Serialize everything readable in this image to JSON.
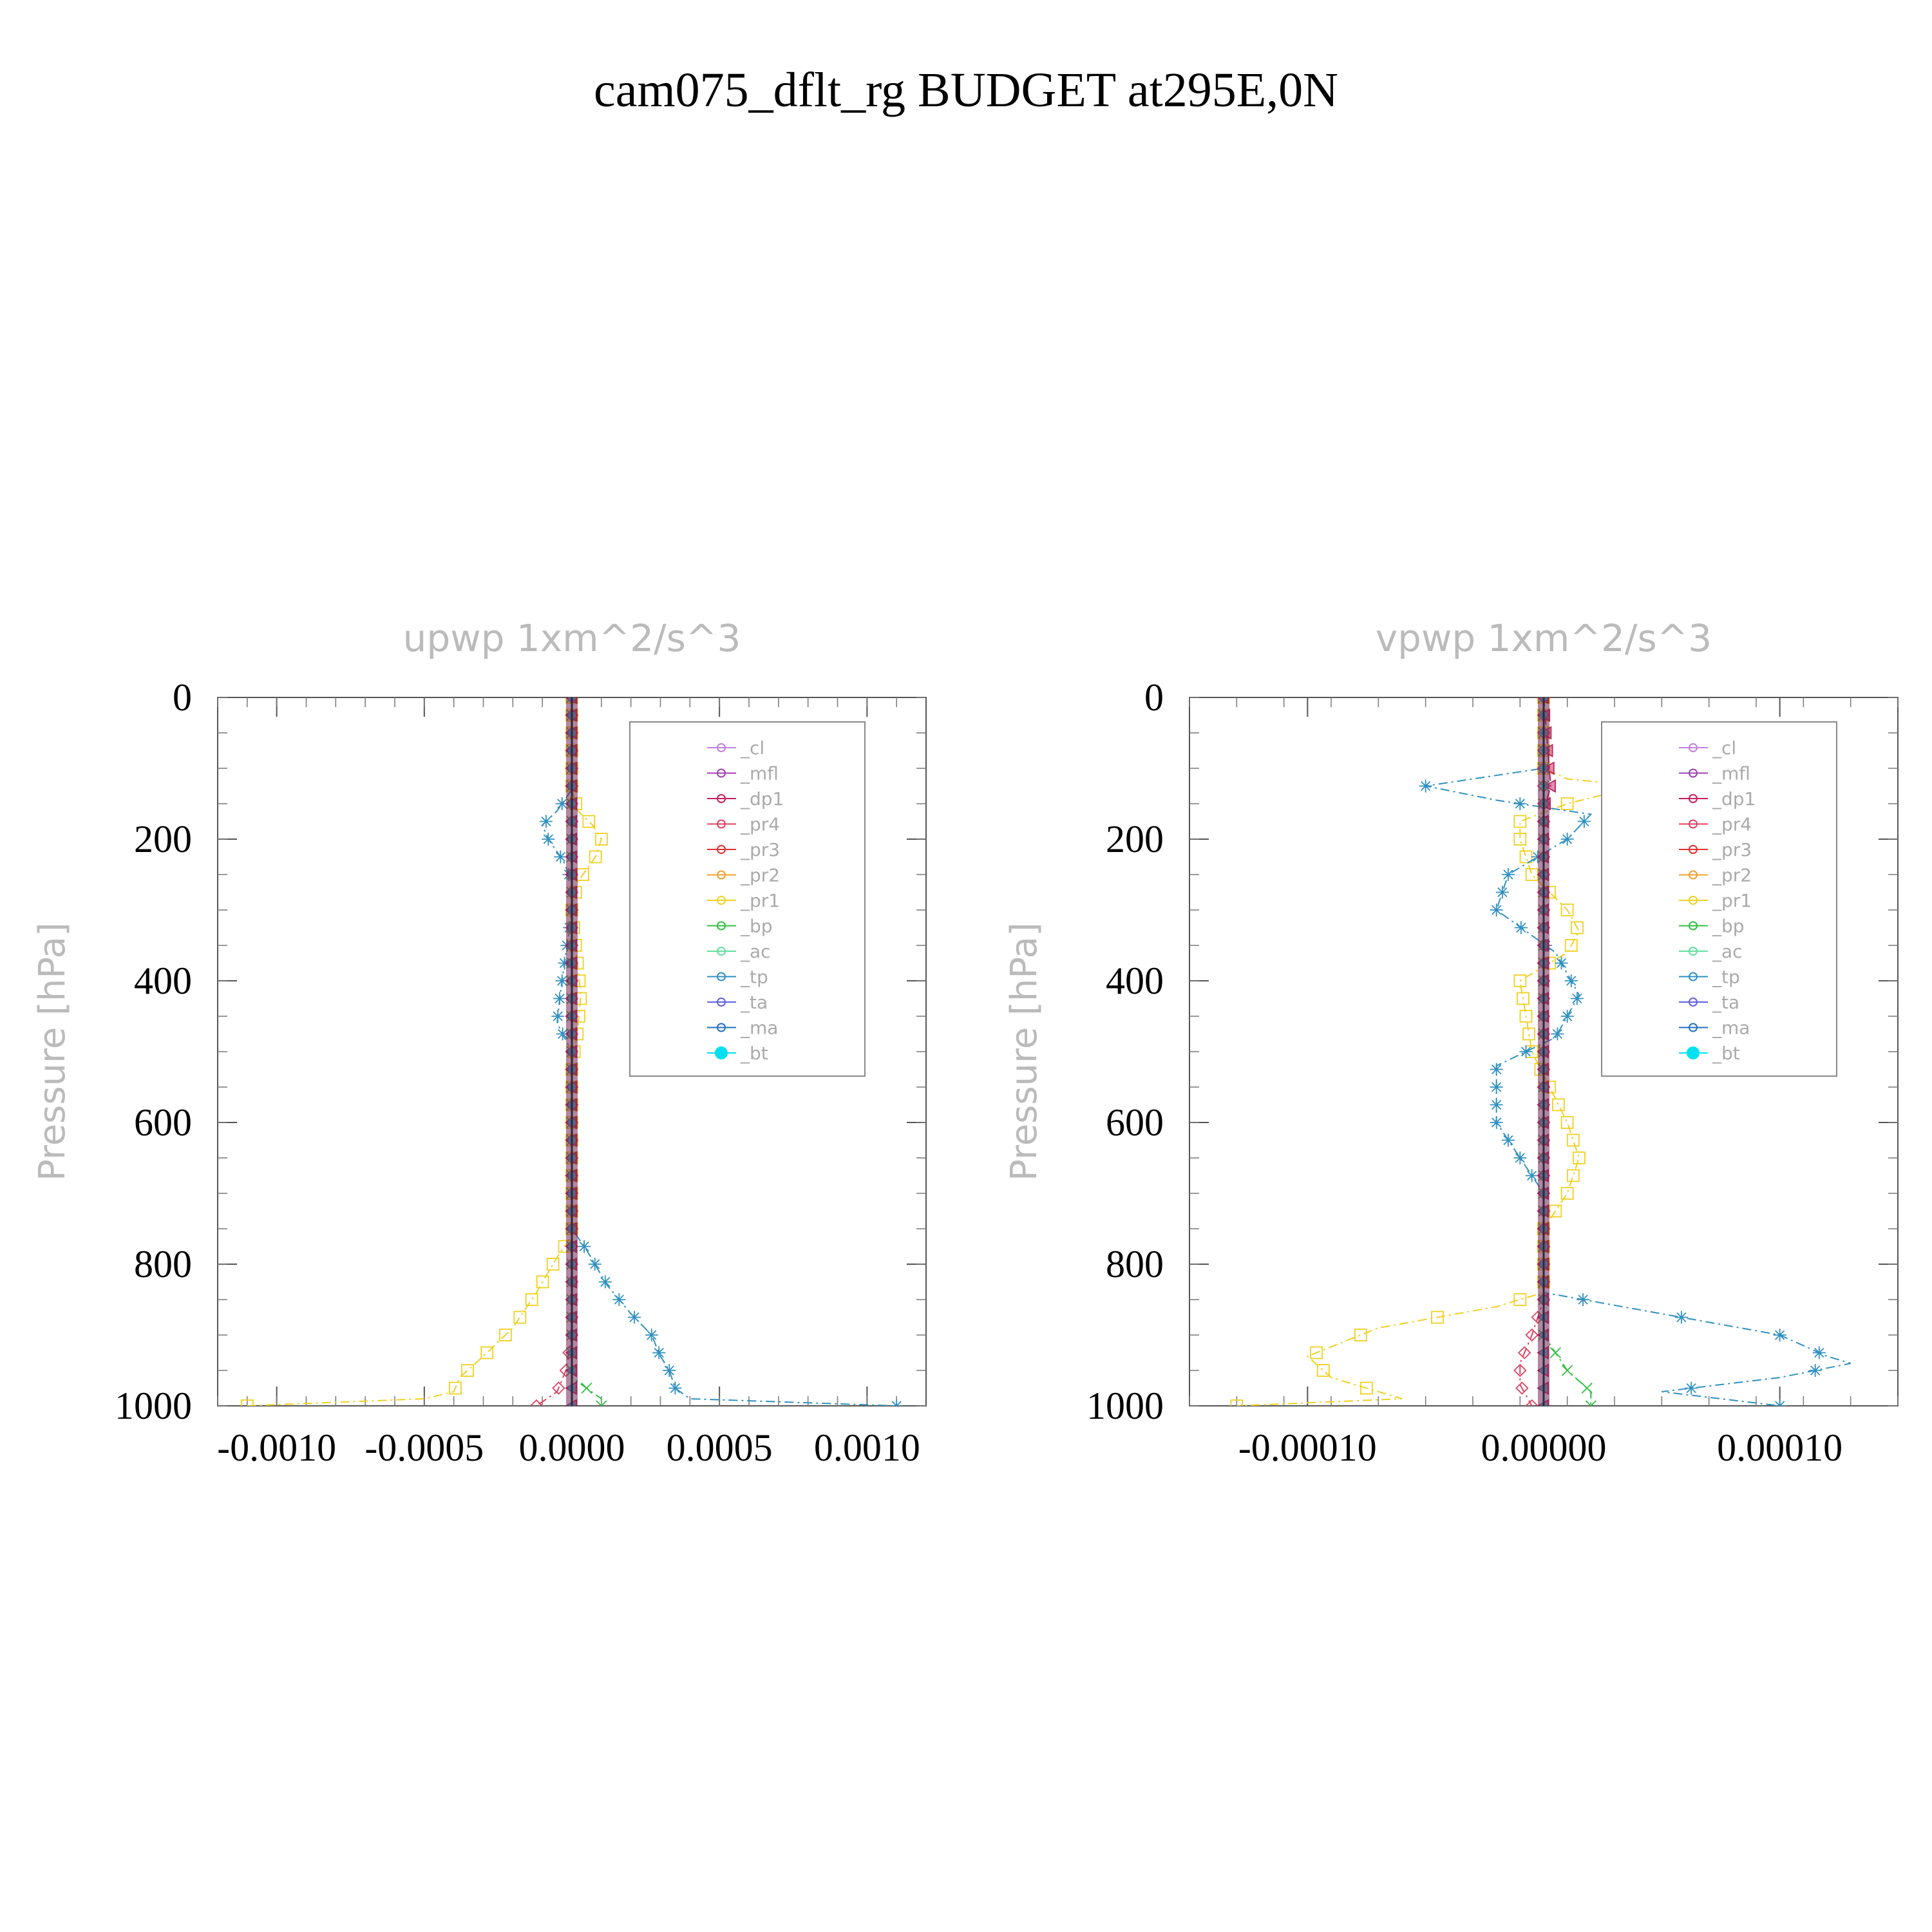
{
  "title": "cam075_dflt_rg  BUDGET at295E,0N",
  "legend_entries": [
    "_cl",
    "_mfl",
    "_dp1",
    "_pr4",
    "_pr3",
    "_pr2",
    "_pr1",
    "_bp",
    "_ac",
    "_tp",
    "_ta",
    "_ma",
    "_bt"
  ],
  "legend_colors": {
    "_cl": "#c080e0",
    "_mfl": "#a040b0",
    "_dp1": "#c02060",
    "_pr4": "#e04060",
    "_pr3": "#e03030",
    "_pr2": "#f0a030",
    "_pr1": "#f0d020",
    "_bp": "#30c040",
    "_ac": "#60e0a0",
    "_tp": "#3090c0",
    "_ta": "#6060e0",
    "_ma": "#2070c0",
    "_bt": "#00e0f0"
  },
  "chart_data": [
    {
      "type": "line",
      "title": "upwp    1xm^2/s^3",
      "ylabel": "Pressure  [hPa]",
      "xlim": [
        -0.0012,
        0.0012
      ],
      "ylim": [
        1000,
        0
      ],
      "x_ticks": [
        -0.001,
        -0.0005,
        0,
        0.0005,
        0.001
      ],
      "x_tick_labels": [
        "-0.0010",
        "-0.0005",
        "0.0000",
        "0.0005",
        "0.0010"
      ],
      "y_ticks": [
        0,
        200,
        400,
        600,
        800,
        1000
      ],
      "y_tick_labels": [
        "0",
        "200",
        "400",
        "600",
        "800",
        "1000"
      ],
      "legend_position": "top-right",
      "series": [
        {
          "name": "_pr1",
          "x": [
            0,
            0,
            2e-05,
            7e-05,
            0.0001,
            8e-05,
            2e-05,
            0,
            3e-05,
            2e-05,
            0,
            0,
            0,
            -5e-05,
            -0.00012,
            -0.0002,
            -0.0003,
            -0.00038,
            -0.0004,
            -0.0005,
            -0.0011
          ],
          "y": [
            0,
            130,
            160,
            180,
            200,
            225,
            260,
            300,
            420,
            470,
            520,
            650,
            760,
            790,
            840,
            890,
            930,
            960,
            980,
            990,
            1000
          ]
        },
        {
          "name": "_tp",
          "x": [
            0,
            0,
            -5e-05,
            -0.0001,
            -8e-05,
            -3e-05,
            0,
            0,
            -4e-05,
            -5e-05,
            0,
            0,
            0,
            5e-05,
            0.00012,
            0.0002,
            0.00027,
            0.0003,
            0.00033,
            0.00035,
            0.0004,
            0.0011
          ],
          "y": [
            0,
            130,
            160,
            180,
            200,
            230,
            260,
            300,
            420,
            460,
            500,
            650,
            750,
            780,
            830,
            870,
            900,
            930,
            950,
            975,
            990,
            1000
          ]
        },
        {
          "name": "_pr4",
          "x": [
            0,
            0,
            0,
            -2e-05,
            -5e-05,
            -0.00012
          ],
          "y": [
            0,
            800,
            900,
            950,
            980,
            1000
          ]
        },
        {
          "name": "_bp",
          "x": [
            0,
            0,
            5e-05,
            0.0001,
            0.0001
          ],
          "y": [
            0,
            960,
            975,
            990,
            1000
          ]
        },
        {
          "name": "_dp1",
          "x": [
            0,
            0
          ],
          "y": [
            0,
            1000
          ]
        },
        {
          "name": "_cl",
          "x": [
            0,
            0
          ],
          "y": [
            0,
            1000
          ]
        },
        {
          "name": "_ta",
          "x": [
            0,
            0
          ],
          "y": [
            0,
            1000
          ]
        },
        {
          "name": "_bt",
          "x": [
            0,
            0
          ],
          "y": [
            0,
            1000
          ]
        }
      ]
    },
    {
      "type": "line",
      "title": "vpwp    1xm^2/s^3",
      "ylabel": "Pressure  [hPa]",
      "xlim": [
        -0.00015,
        0.00015
      ],
      "ylim": [
        1000,
        0
      ],
      "x_ticks": [
        -0.0001,
        0,
        0.0001
      ],
      "x_tick_labels": [
        "-0.00010",
        "0.00000",
        "0.00010"
      ],
      "y_ticks": [
        0,
        200,
        400,
        600,
        800,
        1000
      ],
      "y_tick_labels": [
        "0",
        "200",
        "400",
        "600",
        "800",
        "1000"
      ],
      "legend_position": "top-right",
      "series": [
        {
          "name": "_pr1",
          "x": [
            0,
            0,
            1e-05,
            4e-05,
            1e-05,
            -1e-05,
            -1e-05,
            -5e-06,
            1e-05,
            1.5e-05,
            1e-05,
            -1e-05,
            -5e-06,
            1e-05,
            1.5e-05,
            1e-05,
            0,
            0,
            -2e-05,
            -7e-05,
            -0.0001,
            -9e-05,
            -6e-05,
            -0.00013
          ],
          "y": [
            0,
            100,
            115,
            125,
            150,
            175,
            200,
            250,
            300,
            330,
            360,
            400,
            500,
            600,
            650,
            700,
            750,
            840,
            860,
            890,
            930,
            960,
            990,
            1000
          ]
        },
        {
          "name": "_tp",
          "x": [
            0,
            0,
            -5e-05,
            -2e-05,
            2e-05,
            1e-05,
            -1.5e-05,
            -2e-05,
            5e-06,
            1.5e-05,
            5e-06,
            -2e-05,
            -2e-05,
            0,
            0,
            5e-05,
            0.0001,
            0.00012,
            0.00013,
            0.0001,
            5e-05,
            0.0001
          ],
          "y": [
            0,
            100,
            125,
            145,
            165,
            200,
            250,
            300,
            360,
            420,
            480,
            520,
            600,
            700,
            840,
            870,
            900,
            930,
            940,
            960,
            980,
            1000
          ]
        },
        {
          "name": "_pr4",
          "x": [
            0,
            0,
            -5e-06,
            -1e-05,
            -1e-05,
            -5e-06
          ],
          "y": [
            0,
            850,
            900,
            940,
            970,
            1000
          ]
        },
        {
          "name": "_bp",
          "x": [
            0,
            0,
            1e-05,
            2e-05,
            2e-05
          ],
          "y": [
            0,
            900,
            950,
            980,
            1000
          ]
        },
        {
          "name": "_dp1",
          "x": [
            0,
            3e-06,
            0,
            0
          ],
          "y": [
            0,
            125,
            160,
            1000
          ]
        },
        {
          "name": "_cl",
          "x": [
            0,
            0
          ],
          "y": [
            0,
            1000
          ]
        },
        {
          "name": "_ta",
          "x": [
            0,
            0
          ],
          "y": [
            0,
            1000
          ]
        },
        {
          "name": "_bt",
          "x": [
            0,
            0
          ],
          "y": [
            0,
            1000
          ]
        }
      ]
    }
  ]
}
